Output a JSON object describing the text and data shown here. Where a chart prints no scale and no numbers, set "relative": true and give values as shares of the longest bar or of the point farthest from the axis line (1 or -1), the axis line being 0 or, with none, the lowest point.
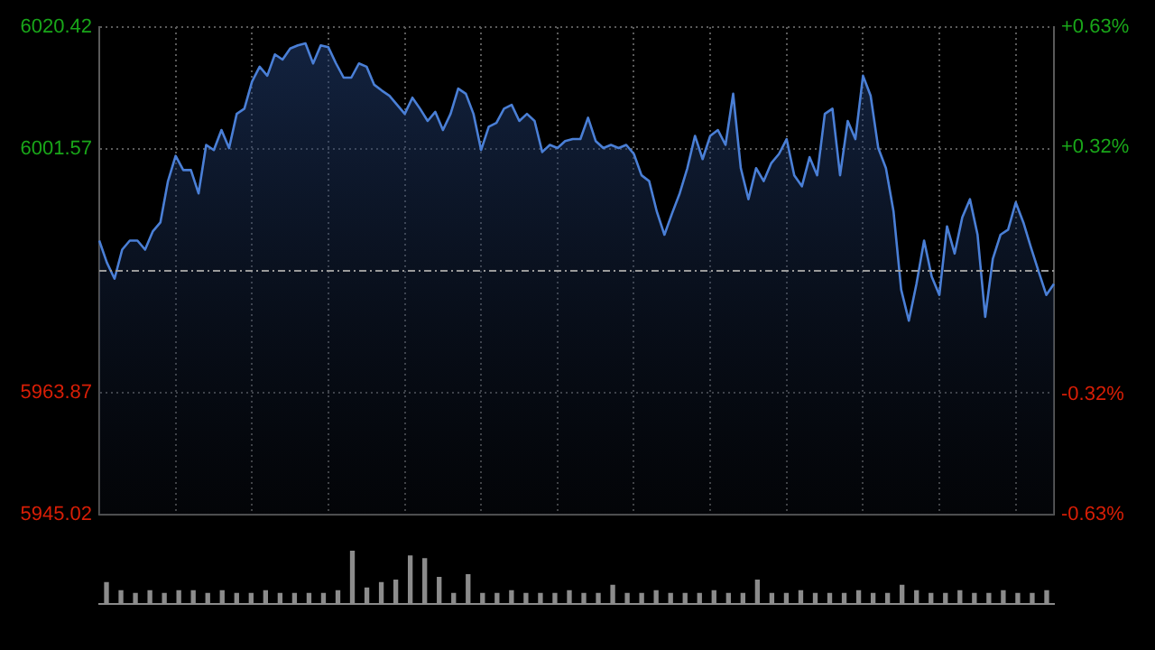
{
  "chart_data": [
    {
      "type": "area",
      "categories": [
        null,
        null,
        null,
        null,
        null,
        null,
        null,
        null,
        null,
        null,
        null,
        null,
        null,
        null,
        null,
        null,
        null,
        null,
        null,
        null,
        null,
        null,
        null,
        null,
        null,
        null,
        null,
        null,
        null,
        null,
        null,
        null,
        null,
        null,
        null,
        null,
        null,
        null,
        null,
        null,
        null,
        null,
        null,
        null,
        null,
        null,
        null,
        null,
        null,
        null,
        null,
        null,
        null,
        null,
        null,
        null,
        null,
        null,
        null,
        null,
        null,
        null,
        null,
        null,
        null,
        null,
        null,
        null,
        null,
        null,
        null,
        null,
        null,
        null,
        null,
        null,
        null,
        null,
        null,
        null,
        null,
        null,
        null,
        null,
        null,
        null,
        null,
        null,
        null,
        null,
        null,
        null,
        null,
        null,
        null,
        null,
        null,
        null,
        null,
        null,
        null,
        null,
        null,
        null,
        null,
        null,
        null,
        null,
        null,
        null,
        null,
        null,
        null,
        null,
        null,
        null,
        null,
        null,
        null,
        null,
        null,
        null,
        null,
        null,
        null,
        null
      ],
      "ylim": [
        5945.02,
        6020.42
      ],
      "yticks": [
        5945.02,
        5963.87,
        6001.57,
        6020.42
      ],
      "y2lim": [
        -0.63,
        0.63
      ],
      "y2ticks": [
        {
          "value": -0.63,
          "label": "-0.63%"
        },
        {
          "value": -0.32,
          "label": "-0.32%"
        },
        {
          "value": 0.32,
          "label": "+0.32%"
        },
        {
          "value": 0.63,
          "label": "+0.63%"
        }
      ],
      "tick_labels": "y",
      "grid": true,
      "ref_lines": [
        {
          "axis": "y",
          "value": 5982.72,
          "line_style": "dashed"
        }
      ],
      "series": [
        {
          "color": "#4a7fd6",
          "values": [
            5987.4,
            5984.0,
            5981.5,
            5986.0,
            5987.4,
            5987.4,
            5986.0,
            5988.8,
            5990.2,
            5996.6,
            6000.5,
            5998.3,
            5998.3,
            5994.7,
            6002.2,
            6001.4,
            6004.5,
            6001.7,
            6007.0,
            6007.8,
            6012.0,
            6014.3,
            6012.9,
            6016.2,
            6015.4,
            6017.1,
            6017.6,
            6017.9,
            6014.8,
            6017.6,
            6017.3,
            6014.8,
            6012.6,
            6012.6,
            6014.8,
            6014.3,
            6011.5,
            6010.6,
            6009.8,
            6008.4,
            6007.0,
            6009.5,
            6007.8,
            6005.9,
            6007.3,
            6004.5,
            6007.0,
            6010.9,
            6010.1,
            6007.0,
            6001.4,
            6005.0,
            6005.6,
            6007.8,
            6008.4,
            6005.9,
            6007.0,
            6005.9,
            6001.1,
            6002.2,
            6001.7,
            6002.8,
            6003.1,
            6003.1,
            6006.4,
            6002.8,
            6001.7,
            6002.2,
            6001.7,
            6002.2,
            6000.8,
            5997.5,
            5996.6,
            5991.9,
            5988.3,
            5991.6,
            5994.7,
            5998.6,
            6003.6,
            6000.0,
            6003.6,
            6004.5,
            6002.2,
            6010.1,
            5998.6,
            5993.8,
            5998.6,
            5996.6,
            5999.4,
            6000.8,
            6003.1,
            5997.5,
            5995.8,
            6000.3,
            5997.5,
            6007.0,
            6007.8,
            5997.5,
            6005.9,
            6003.1,
            6012.9,
            6009.8,
            6001.7,
            5998.6,
            5991.9,
            5979.8,
            5975.0,
            5980.7,
            5987.4,
            5981.8,
            5979.0,
            5989.6,
            5985.4,
            5991.0,
            5993.8,
            5988.3,
            5975.6,
            5984.6,
            5988.3,
            5989.1,
            5993.3,
            5990.2,
            5986.3,
            5982.6,
            5979.0,
            5980.7
          ]
        }
      ]
    },
    {
      "type": "bar",
      "relative": true,
      "categories": [
        null,
        null,
        null,
        null,
        null,
        null,
        null,
        null,
        null,
        null,
        null,
        null,
        null,
        null,
        null,
        null,
        null,
        null,
        null,
        null,
        null,
        null,
        null,
        null,
        null,
        null,
        null,
        null,
        null,
        null,
        null,
        null,
        null,
        null,
        null,
        null,
        null,
        null,
        null,
        null,
        null,
        null,
        null,
        null,
        null,
        null,
        null,
        null,
        null,
        null,
        null,
        null,
        null,
        null,
        null,
        null,
        null,
        null,
        null,
        null,
        null,
        null,
        null,
        null,
        null,
        null
      ],
      "color": "#8c8c8c",
      "values": [
        0.4,
        0.25,
        0.2,
        0.25,
        0.2,
        0.25,
        0.25,
        0.2,
        0.25,
        0.2,
        0.2,
        0.25,
        0.2,
        0.2,
        0.2,
        0.2,
        0.25,
        1,
        0.3,
        0.4,
        0.45,
        0.9,
        0.85,
        0.5,
        0.2,
        0.55,
        0.2,
        0.2,
        0.25,
        0.2,
        0.2,
        0.2,
        0.25,
        0.2,
        0.2,
        0.35,
        0.2,
        0.2,
        0.25,
        0.2,
        0.2,
        0.2,
        0.25,
        0.2,
        0.2,
        0.45,
        0.2,
        0.2,
        0.25,
        0.2,
        0.2,
        0.2,
        0.25,
        0.2,
        0.2,
        0.35,
        0.25,
        0.2,
        0.2,
        0.25,
        0.2,
        0.2,
        0.25,
        0.2,
        0.2,
        0.25
      ]
    }
  ]
}
